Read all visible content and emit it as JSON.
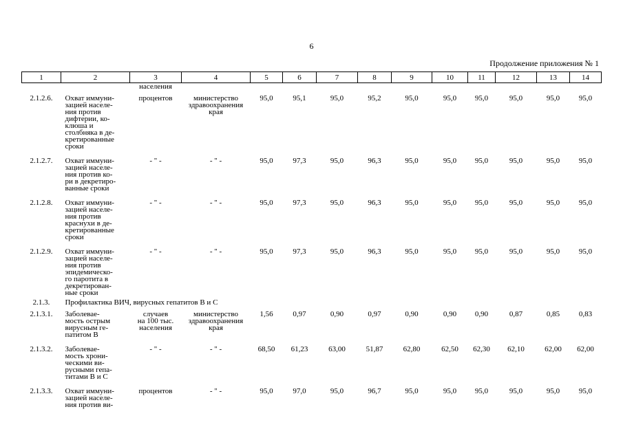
{
  "page_number": "6",
  "continuation": "Продолжение приложения № 1",
  "columns": [
    "1",
    "2",
    "3",
    "4",
    "5",
    "6",
    "7",
    "8",
    "9",
    "10",
    "11",
    "12",
    "13",
    "14"
  ],
  "top_carryover": "населения",
  "rows": [
    {
      "code": "2.1.2.6.",
      "name": "Охват иммуни-\nзацией населе-\nния против\nдифтерии, ко-\nклюша и\nстолбняка в де-\nкретированные\nсроки",
      "unit": "процентов",
      "org": "министерство\nздравоохранения\nкрая",
      "values": [
        "95,0",
        "95,1",
        "95,0",
        "95,2",
        "95,0",
        "95,0",
        "95,0",
        "95,0",
        "95,0",
        "95,0"
      ]
    },
    {
      "code": "2.1.2.7.",
      "name": "Охват иммуни-\nзацией населе-\nния против ко-\nри в декретиро-\nванные сроки",
      "unit": "- \" -",
      "org": "- \" -",
      "values": [
        "95,0",
        "97,3",
        "95,0",
        "96,3",
        "95,0",
        "95,0",
        "95,0",
        "95,0",
        "95,0",
        "95,0"
      ]
    },
    {
      "code": "2.1.2.8.",
      "name": "Охват иммуни-\nзацией населе-\nния против\nкраснухи в де-\nкретированные\nсроки",
      "unit": "- \" -",
      "org": "- \" -",
      "values": [
        "95,0",
        "97,3",
        "95,0",
        "96,3",
        "95,0",
        "95,0",
        "95,0",
        "95,0",
        "95,0",
        "95,0"
      ]
    },
    {
      "code": "2.1.2.9.",
      "name": "Охват иммуни-\nзацией населе-\nния против\nэпидемическо-\nго паротита в\nдекретирован-\nные сроки",
      "unit": "- \" -",
      "org": "- \" -",
      "values": [
        "95,0",
        "97,3",
        "95,0",
        "96,3",
        "95,0",
        "95,0",
        "95,0",
        "95,0",
        "95,0",
        "95,0"
      ]
    }
  ],
  "section": {
    "code": "2.1.3.",
    "title": "Профилактика ВИЧ, вирусных гепатитов В и С"
  },
  "rows2": [
    {
      "code": "2.1.3.1.",
      "name": "Заболевае-\nмость острым\nвирусным ге-\nпатитом В",
      "unit": "случаев\nна 100 тыс.\nнаселения",
      "org": "министерство\nздравоохранения\nкрая",
      "values": [
        "1,56",
        "0,97",
        "0,90",
        "0,97",
        "0,90",
        "0,90",
        "0,90",
        "0,87",
        "0,85",
        "0,83"
      ]
    },
    {
      "code": "2.1.3.2.",
      "name": "Заболевае-\nмость хрони-\nческими ви-\nрусными гепа-\nтитами В и С",
      "unit": "- \" -",
      "org": "- \" -",
      "values": [
        "68,50",
        "61,23",
        "63,00",
        "51,87",
        "62,80",
        "62,50",
        "62,30",
        "62,10",
        "62,00",
        "62,00"
      ]
    },
    {
      "code": "2.1.3.3.",
      "name": "Охват иммуни-\nзацией населе-\nния против ви-",
      "unit": "процентов",
      "org": "- \" -",
      "values": [
        "95,0",
        "97,0",
        "95,0",
        "96,7",
        "95,0",
        "95,0",
        "95,0",
        "95,0",
        "95,0",
        "95,0"
      ]
    }
  ]
}
